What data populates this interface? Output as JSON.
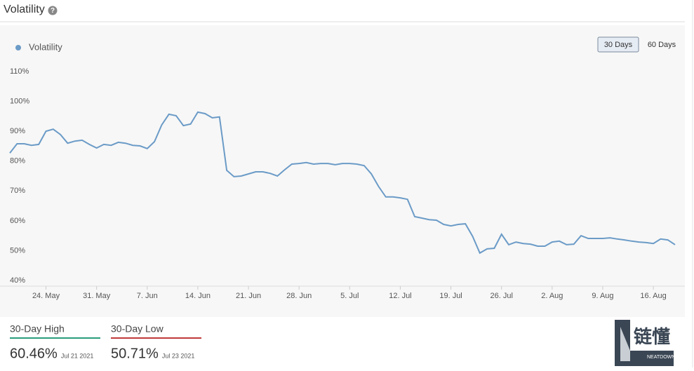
{
  "header": {
    "title": "Volatility"
  },
  "controls": {
    "buttons": [
      "30 Days",
      "60 Days"
    ]
  },
  "chart_data": {
    "type": "line",
    "series": [
      {
        "name": "Volatility",
        "color": "#6b9bc7",
        "values": [
          82.7,
          85.8,
          85.8,
          85.3,
          85.6,
          90.0,
          90.7,
          88.9,
          86.0,
          86.7,
          87.0,
          85.6,
          84.4,
          85.6,
          85.3,
          86.3,
          86.0,
          85.3,
          85.1,
          84.2,
          86.5,
          92.1,
          95.7,
          95.2,
          91.9,
          92.4,
          96.4,
          95.9,
          94.5,
          94.8,
          76.9,
          74.8,
          75.0,
          75.7,
          76.4,
          76.4,
          75.9,
          75.0,
          77.1,
          79.0,
          79.2,
          79.5,
          79.0,
          79.2,
          79.2,
          78.8,
          79.2,
          79.2,
          79.0,
          78.5,
          75.7,
          71.5,
          68.0,
          68.0,
          67.7,
          67.2,
          61.4,
          60.9,
          60.4,
          60.2,
          58.8,
          58.3,
          58.8,
          59.0,
          54.8,
          49.2,
          50.6,
          50.8,
          55.5,
          52.0,
          52.9,
          52.4,
          52.2,
          51.5,
          51.5,
          52.9,
          53.2,
          52.0,
          52.2,
          55.0,
          54.1,
          54.1,
          54.1,
          54.3,
          53.9,
          53.6,
          53.2,
          52.9,
          52.7,
          52.4,
          53.9,
          53.6,
          52.0
        ]
      }
    ],
    "x": [
      "05-19",
      "05-20",
      "05-21",
      "05-22",
      "05-23",
      "05-24",
      "05-25",
      "05-26",
      "05-27",
      "05-28",
      "05-29",
      "05-30",
      "05-31",
      "06-01",
      "06-02",
      "06-03",
      "06-04",
      "06-05",
      "06-06",
      "06-07",
      "06-08",
      "06-09",
      "06-10",
      "06-11",
      "06-12",
      "06-13",
      "06-14",
      "06-15",
      "06-16",
      "06-17",
      "06-18",
      "06-19",
      "06-20",
      "06-21",
      "06-22",
      "06-23",
      "06-24",
      "06-25",
      "06-26",
      "06-27",
      "06-28",
      "06-29",
      "06-30",
      "07-01",
      "07-02",
      "07-03",
      "07-04",
      "07-05",
      "07-06",
      "07-07",
      "07-08",
      "07-09",
      "07-10",
      "07-11",
      "07-12",
      "07-13",
      "07-14",
      "07-15",
      "07-16",
      "07-17",
      "07-18",
      "07-19",
      "07-20",
      "07-21",
      "07-22",
      "07-23",
      "07-24",
      "07-25",
      "07-26",
      "07-27",
      "07-28",
      "07-29",
      "07-30",
      "07-31",
      "08-01",
      "08-02",
      "08-03",
      "08-04",
      "08-05",
      "08-06",
      "08-07",
      "08-08",
      "08-09",
      "08-10",
      "08-11",
      "08-12",
      "08-13",
      "08-14",
      "08-15",
      "08-16",
      "08-17",
      "08-18",
      "08-19"
    ],
    "xlim": [
      "05-19",
      "08-19"
    ],
    "xticks": [
      {
        "value": "05-24",
        "label": "24. May"
      },
      {
        "value": "05-31",
        "label": "31. May"
      },
      {
        "value": "06-07",
        "label": "7. Jun"
      },
      {
        "value": "06-14",
        "label": "14. Jun"
      },
      {
        "value": "06-21",
        "label": "21. Jun"
      },
      {
        "value": "06-28",
        "label": "28. Jun"
      },
      {
        "value": "07-05",
        "label": "5. Jul"
      },
      {
        "value": "07-12",
        "label": "12. Jul"
      },
      {
        "value": "07-19",
        "label": "19. Jul"
      },
      {
        "value": "07-26",
        "label": "26. Jul"
      },
      {
        "value": "08-02",
        "label": "2. Aug"
      },
      {
        "value": "08-09",
        "label": "9. Aug"
      },
      {
        "value": "08-16",
        "label": "16. Aug"
      }
    ],
    "ylim": [
      40,
      110
    ],
    "yticks": [
      {
        "value": 40,
        "label": "40%"
      },
      {
        "value": 50,
        "label": "50%"
      },
      {
        "value": 60,
        "label": "60%"
      },
      {
        "value": 70,
        "label": "70%"
      },
      {
        "value": 80,
        "label": "80%"
      },
      {
        "value": 90,
        "label": "90%"
      },
      {
        "value": 100,
        "label": "100%"
      },
      {
        "value": 110,
        "label": "110%"
      }
    ],
    "grid": false
  },
  "stats": [
    {
      "label": "30-Day High",
      "value": "60.46%",
      "date": "Jul 21 2021",
      "color": "#2a9d7c"
    },
    {
      "label": "30-Day Low",
      "value": "50.71%",
      "date": "Jul 23 2021",
      "color": "#c0393b"
    }
  ],
  "watermark": {
    "text": "链懂",
    "subtext": "NEATDOWN.COM"
  }
}
